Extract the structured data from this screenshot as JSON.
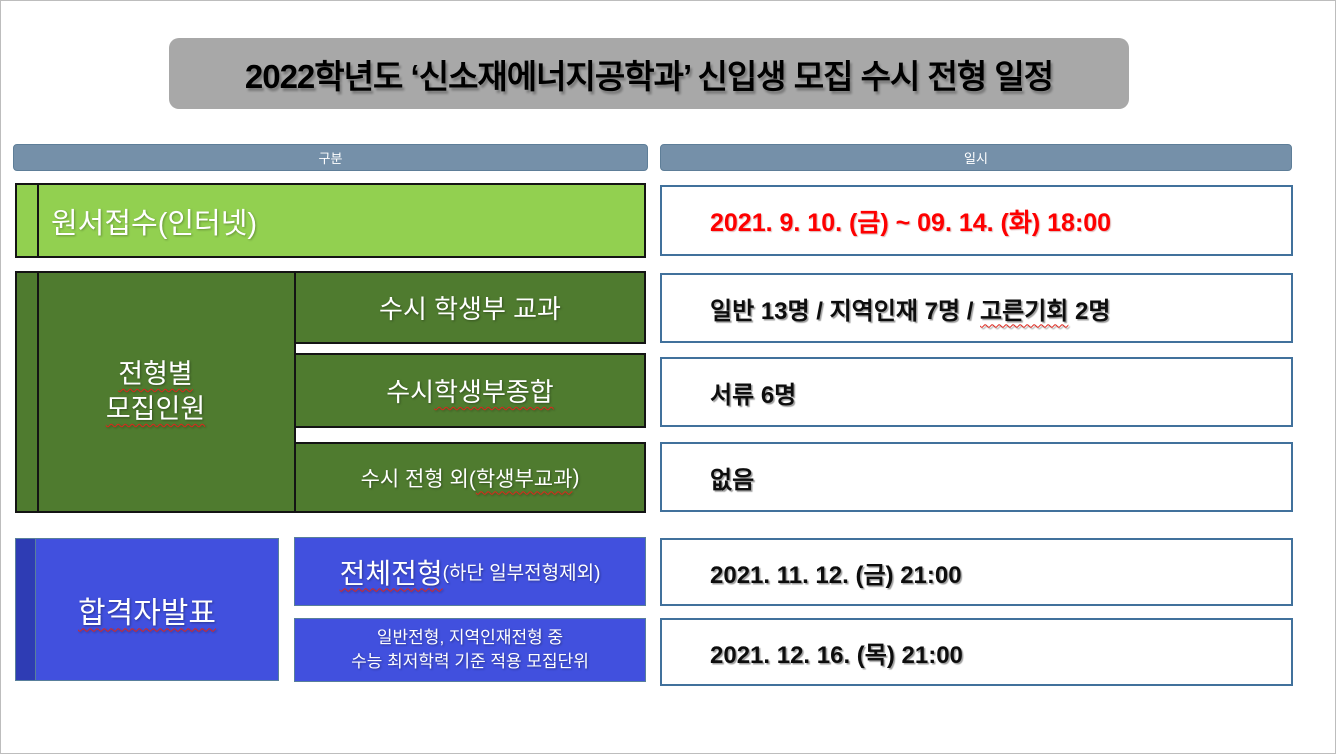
{
  "title": "2022학년도 ‘신소재에너지공학과’ 신입생 모집 수시 전형 일정",
  "colors": {
    "title_gray": "#a8a8a8",
    "header_slate": "#7590a9",
    "light_green": "#92d050",
    "dark_green": "#4f7b2f",
    "blue": "#4150de",
    "blue_strip": "#2e3cb4",
    "white_cell_border": "#41719c",
    "date_red": "#fe0000",
    "squiggle_red": "#e0251b"
  },
  "headers": {
    "category": "구분",
    "datetime": "일시"
  },
  "application": {
    "category": "원서접수(인터넷)",
    "date": "2021. 9. 10. (금) ~ 09. 14. (화) 18:00"
  },
  "quota": {
    "group_line1": "전형별",
    "group_line2": "모집인원",
    "items": [
      {
        "label": "수시 학생부 교과",
        "value_pre": "일반 13명 / 지역인재 7명 / ",
        "value_sq": "고른기회",
        "value_post": " 2명"
      },
      {
        "label_pre": "수시 ",
        "label_sq": "학생부종합",
        "value": "서류 6명"
      },
      {
        "label_pre": "수시 전형 외(",
        "label_sq": "학생부교과",
        "label_post": ")",
        "value": "없음"
      }
    ]
  },
  "announcement": {
    "group": "합격자발표",
    "items": [
      {
        "label_main": "전체전형",
        "label_sub": "(하단 일부전형제외)",
        "value": "2021. 11. 12. (금) 21:00"
      },
      {
        "label_line1": "일반전형, 지역인재전형 중",
        "label_line2": "수능 최저학력 기준 적용 모집단위",
        "value": "2021. 12. 16. (목) 21:00"
      }
    ]
  }
}
